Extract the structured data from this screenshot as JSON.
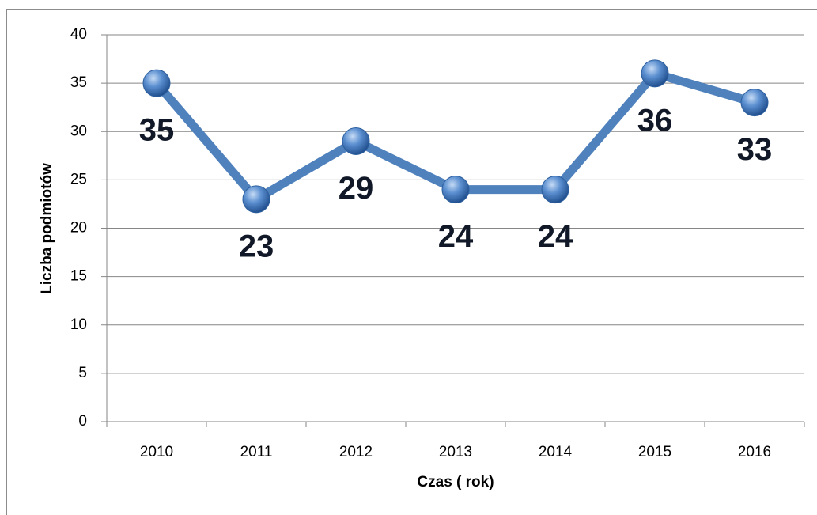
{
  "chart_data": {
    "type": "line",
    "x_label": "Czas ( rok)",
    "y_label": "Liczba podmiotów",
    "categories": [
      "2010",
      "2011",
      "2012",
      "2013",
      "2014",
      "2015",
      "2016"
    ],
    "series": [
      {
        "name": "Liczba podmiotów",
        "color": "#4f81bd",
        "values": [
          35,
          23,
          29,
          24,
          24,
          36,
          33
        ]
      }
    ],
    "ylim": [
      0,
      40
    ],
    "yticks": [
      0,
      5,
      10,
      15,
      20,
      25,
      30,
      35,
      40
    ],
    "grid": true
  }
}
